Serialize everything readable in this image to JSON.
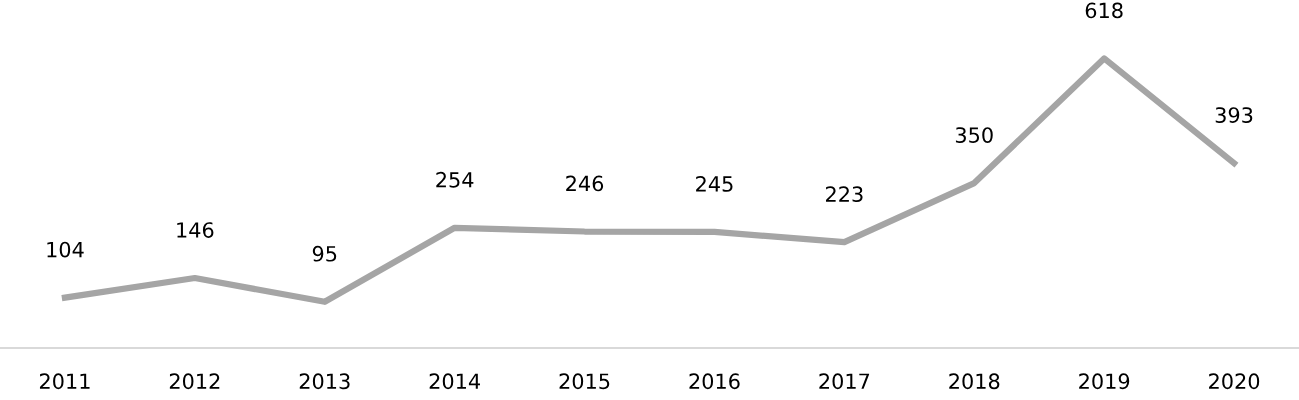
{
  "chart_data": {
    "type": "line",
    "categories": [
      "2011",
      "2012",
      "2013",
      "2014",
      "2015",
      "2016",
      "2017",
      "2018",
      "2019",
      "2020"
    ],
    "series": [
      {
        "color": "#a5a5a5",
        "values": [
          104,
          146,
          95,
          254,
          246,
          245,
          223,
          350,
          618,
          393
        ]
      }
    ],
    "data_labels": true,
    "grid": false,
    "legend": false,
    "marker": "none",
    "line_style": "solid"
  }
}
